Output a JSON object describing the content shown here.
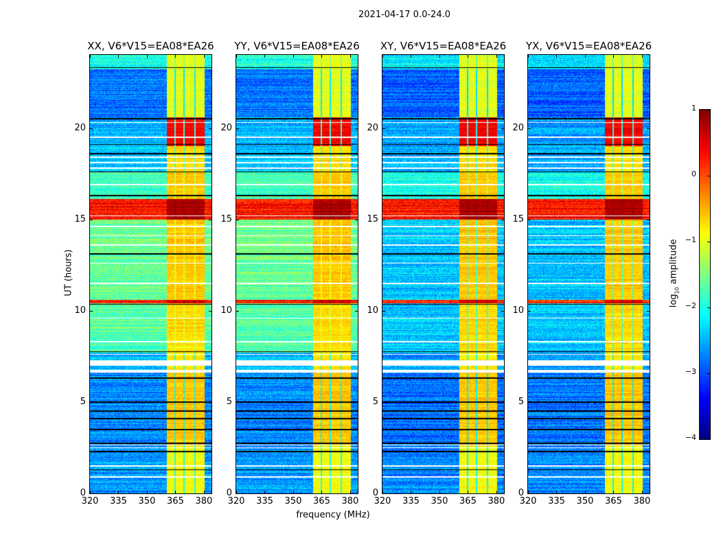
{
  "suptitle": "2021-04-17 0.0-24.0",
  "chart_data": {
    "type": "heatmap",
    "panels": [
      {
        "title": "XX, V6*V15=EA08*EA26",
        "kind": "parallel"
      },
      {
        "title": "YY, V6*V15=EA08*EA26",
        "kind": "parallel"
      },
      {
        "title": "XY, V6*V15=EA08*EA26",
        "kind": "cross"
      },
      {
        "title": "YX, V6*V15=EA08*EA26",
        "kind": "cross"
      }
    ],
    "xlabel": "frequency (MHz)",
    "ylabel": "UT (hours)",
    "xlim": [
      320,
      384
    ],
    "ylim": [
      0,
      24
    ],
    "xticks": [
      "320",
      "335",
      "350",
      "365",
      "380"
    ],
    "yticks": [
      "0",
      "5",
      "10",
      "15",
      "20"
    ],
    "colormap": "jet",
    "colorbar": {
      "label_prefix": "log",
      "label_sub": "10",
      "label_suffix": " amplitude",
      "range": [
        -4,
        1
      ],
      "ticks": [
        "1",
        "0",
        "−1",
        "−2",
        "−3",
        "−4"
      ]
    },
    "rfi_band_mhz": [
      360.5,
      380.5
    ],
    "band_gaps_mhz": [
      364.8,
      369.5,
      375.3
    ],
    "time_segments": [
      {
        "from": 0.0,
        "to": 2.6,
        "parallel": -2.6,
        "cross": -2.7,
        "band": -0.9
      },
      {
        "from": 2.6,
        "to": 6.6,
        "parallel": -2.7,
        "cross": -2.8,
        "band": -0.6
      },
      {
        "from": 6.6,
        "to": 7.7,
        "parallel": -2.5,
        "cross": -2.6,
        "band": -0.8
      },
      {
        "from": 7.7,
        "to": 10.4,
        "parallel": -1.7,
        "cross": -2.4,
        "band": -0.7
      },
      {
        "from": 10.4,
        "to": 10.6,
        "parallel": 0.3,
        "cross": 0.2,
        "band": 0.6
      },
      {
        "from": 10.6,
        "to": 15.0,
        "parallel": -1.6,
        "cross": -2.4,
        "band": -0.6
      },
      {
        "from": 15.0,
        "to": 16.1,
        "parallel": 0.3,
        "cross": 0.3,
        "band": 0.8
      },
      {
        "from": 16.1,
        "to": 17.6,
        "parallel": -1.8,
        "cross": -2.0,
        "band": -0.6
      },
      {
        "from": 17.6,
        "to": 19.0,
        "parallel": -2.4,
        "cross": -2.5,
        "band": -0.7
      },
      {
        "from": 19.0,
        "to": 20.6,
        "parallel": -2.5,
        "cross": -2.6,
        "band": 0.4
      },
      {
        "from": 20.6,
        "to": 23.2,
        "parallel": -2.8,
        "cross": -2.9,
        "band": -1.0
      },
      {
        "from": 23.2,
        "to": 24.0,
        "parallel": -2.0,
        "cross": -2.2,
        "band": -1.0
      }
    ],
    "flagged_white_hours": [
      0.9,
      1.5,
      2.5,
      2.65,
      7.6,
      8.3,
      9.6,
      11.5,
      12.6,
      13.6,
      14.1,
      14.6,
      15.2,
      16.9,
      17.8,
      18.1,
      18.4,
      19.5,
      20.3
    ],
    "flagged_white_ranges": [
      [
        6.6,
        6.75
      ],
      [
        7.0,
        7.3
      ]
    ],
    "flagged_black_hours": [
      1.3,
      2.3,
      2.75,
      3.5,
      4.1,
      4.5,
      5.0,
      6.3,
      7.75,
      10.35,
      13.1,
      16.3,
      17.6,
      18.6,
      19.1,
      20.5,
      23.3
    ]
  }
}
